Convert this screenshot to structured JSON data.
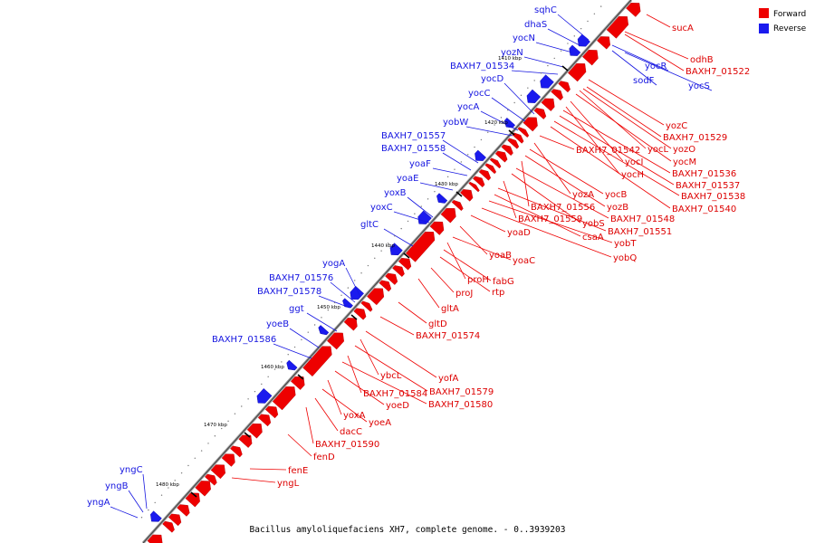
{
  "caption": "Bacillus amyloliquefaciens XH7, complete genome. - 0..3939203",
  "legend": [
    {
      "label": "Forward",
      "color": "#ee0000"
    },
    {
      "label": "Reverse",
      "color": "#1a1aee"
    }
  ],
  "ticks": [
    "1410 kbp",
    "1420 kbp",
    "1430 kbp",
    "1440 kbp",
    "1450 kbp",
    "1460 kbp",
    "1470 kbp",
    "1480 kbp"
  ],
  "forward_labels": [
    "sucA",
    "odhB",
    "BAXH7_01522",
    "yozC",
    "BAXH7_01529",
    "yocL",
    "yozO",
    "yocM",
    "yocI",
    "yocH",
    "BAXH7_01536",
    "BAXH7_01537",
    "BAXH7_01538",
    "BAXH7_01540",
    "BAXH7_01542",
    "yozA",
    "yocB",
    "yozB",
    "BAXH7_01556",
    "BAXH7_01548",
    "yobS",
    "BAXH7_01559",
    "BAXH7_01551",
    "csaA",
    "yobT",
    "yobQ",
    "yoaD",
    "yoaB",
    "yoaC",
    "proH",
    "fabG",
    "rtp",
    "proJ",
    "gltA",
    "gltD",
    "BAXH7_01574",
    "yofA",
    "ybcL",
    "BAXH7_01579",
    "BAXH7_01584",
    "BAXH7_01580",
    "yoeD",
    "yoxA",
    "yoeA",
    "dacC",
    "BAXH7_01590",
    "fenD",
    "fenE",
    "yngL"
  ],
  "reverse_labels": [
    "sqhC",
    "dhaS",
    "yocN",
    "yozN",
    "BAXH7_01534",
    "yocD",
    "yocC",
    "yocA",
    "yobW",
    "BAXH7_01557",
    "BAXH7_01558",
    "yoaF",
    "yoaE",
    "yoxB",
    "yoxC",
    "gltC",
    "yogA",
    "BAXH7_01576",
    "BAXH7_01578",
    "ggt",
    "yoeB",
    "BAXH7_01586",
    "yngC",
    "yngB",
    "yngA",
    "yocR",
    "sodF",
    "yocS"
  ]
}
